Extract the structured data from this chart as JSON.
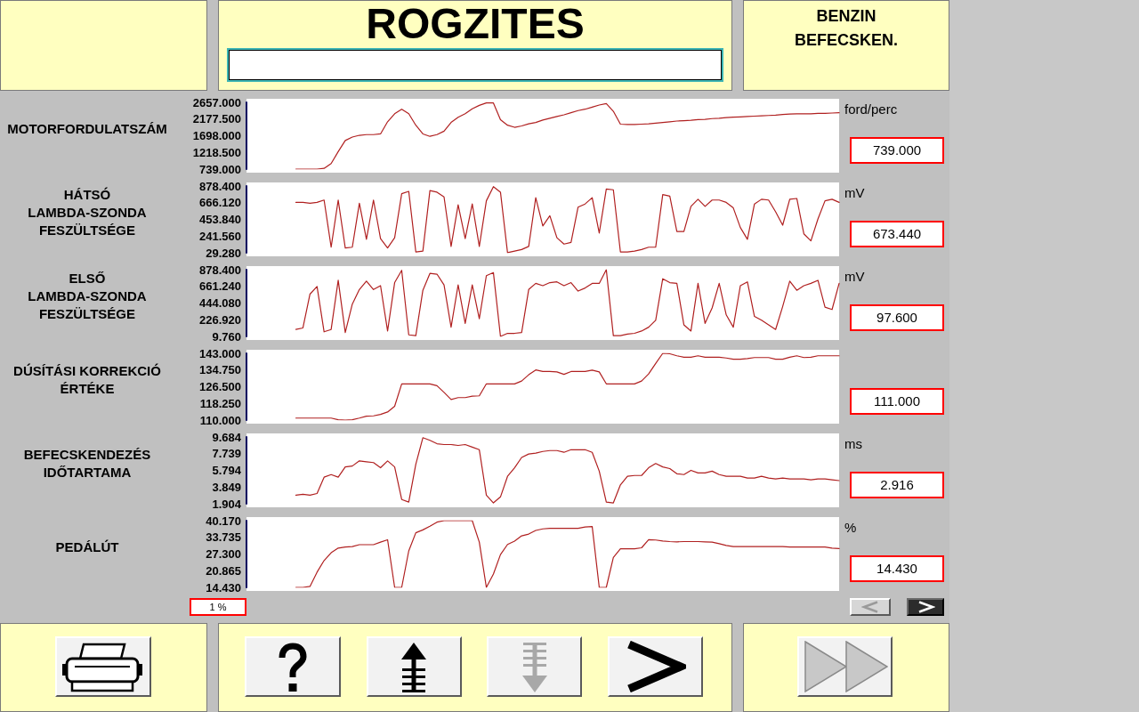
{
  "chart_data": [
    {
      "type": "other",
      "title": "ROGZITES",
      "annotations": [
        "BENZIN\nBEFECSKEN."
      ]
    },
    {
      "type": "line",
      "ylabel": "MOTORFORDULATSZÁM",
      "annotations": [
        "739.000",
        "ford/perc"
      ],
      "color": "#b02020",
      "tick_labels": "y",
      "ylim": [
        739,
        2657
      ],
      "yticks": [
        {
          "value": 739,
          "label": "739.000"
        },
        {
          "value": 1218.5,
          "label": "1218.500"
        },
        {
          "value": 1698,
          "label": "1698.000"
        },
        {
          "value": 2177.5,
          "label": "2177.500"
        },
        {
          "value": 2657,
          "label": "2657.000"
        }
      ],
      "categories": [
        null,
        null,
        null,
        null,
        null,
        null,
        null,
        null,
        null,
        null,
        null,
        null,
        null,
        null,
        null,
        null,
        null,
        null,
        null,
        null,
        null,
        null,
        null,
        null,
        null,
        null,
        null,
        null,
        null,
        null,
        null,
        null,
        null,
        null,
        null,
        null,
        null,
        null,
        null,
        null,
        null,
        null,
        null,
        null,
        null,
        null,
        null,
        null,
        null,
        null,
        null,
        null,
        null,
        null,
        null,
        null,
        null,
        null,
        null,
        null,
        null,
        null,
        null,
        null,
        null,
        null,
        null,
        null,
        null,
        null,
        null,
        null,
        null,
        null,
        null,
        null,
        null,
        null,
        null,
        null,
        null,
        null,
        null,
        null,
        null
      ],
      "values": [
        null,
        null,
        null,
        null,
        null,
        null,
        null,
        739,
        739,
        739,
        739,
        760,
        900,
        1240,
        1560,
        1660,
        1710,
        1730,
        1730,
        1750,
        2100,
        2330,
        2460,
        2330,
        2000,
        1750,
        1680,
        1730,
        1830,
        2080,
        2230,
        2330,
        2470,
        2570,
        2640,
        2640,
        2160,
        2000,
        1940,
        1980,
        2040,
        2080,
        2150,
        2200,
        2250,
        2300,
        2360,
        2420,
        2460,
        2520,
        2580,
        2620,
        2400,
        2030,
        2020,
        2020,
        2030,
        2040,
        2060,
        2080,
        2100,
        2120,
        2130,
        2140,
        2160,
        2170,
        2190,
        2200,
        2220,
        2230,
        2240,
        2250,
        2260,
        2270,
        2280,
        2290,
        2310,
        2320,
        2330,
        2330,
        2330,
        2340,
        2340,
        2350,
        2360
      ]
    },
    {
      "type": "line",
      "ylabel": "HÁTSÓ\nLAMBDA-SZONDA\nFESZÜLTSÉGE",
      "annotations": [
        "673.440",
        "mV"
      ],
      "color": "#b02020",
      "tick_labels": "y",
      "ylim": [
        29.28,
        878.4
      ],
      "yticks": [
        {
          "value": 29.28,
          "label": "29.280"
        },
        {
          "value": 241.56,
          "label": "241.560"
        },
        {
          "value": 453.84,
          "label": "453.840"
        },
        {
          "value": 666.12,
          "label": "666.120"
        },
        {
          "value": 878.4,
          "label": "878.400"
        }
      ],
      "categories": [
        null,
        null,
        null,
        null,
        null,
        null,
        null,
        null,
        null,
        null,
        null,
        null,
        null,
        null,
        null,
        null,
        null,
        null,
        null,
        null,
        null,
        null,
        null,
        null,
        null,
        null,
        null,
        null,
        null,
        null,
        null,
        null,
        null,
        null,
        null,
        null,
        null,
        null,
        null,
        null,
        null,
        null,
        null,
        null,
        null,
        null,
        null,
        null,
        null,
        null,
        null,
        null,
        null,
        null,
        null,
        null,
        null,
        null,
        null,
        null,
        null,
        null,
        null,
        null,
        null,
        null,
        null,
        null,
        null,
        null,
        null,
        null,
        null,
        null,
        null,
        null,
        null,
        null,
        null,
        null,
        null,
        null,
        null,
        null,
        null
      ],
      "values": [
        null,
        null,
        null,
        null,
        null,
        null,
        null,
        670,
        670,
        660,
        670,
        700,
        100,
        700,
        90,
        100,
        660,
        200,
        700,
        210,
        90,
        220,
        780,
        810,
        40,
        50,
        820,
        800,
        740,
        110,
        640,
        210,
        650,
        110,
        690,
        870,
        800,
        30,
        50,
        70,
        110,
        730,
        370,
        500,
        220,
        140,
        160,
        610,
        650,
        730,
        280,
        840,
        830,
        40,
        40,
        50,
        70,
        100,
        100,
        770,
        750,
        300,
        300,
        620,
        710,
        620,
        700,
        700,
        670,
        600,
        350,
        200,
        650,
        710,
        700,
        550,
        380,
        710,
        720,
        270,
        180,
        460,
        690,
        710,
        670
      ]
    },
    {
      "type": "line",
      "ylabel": "ELSŐ\nLAMBDA-SZONDA\nFESZÜLTSÉGE",
      "annotations": [
        "97.600",
        "mV"
      ],
      "color": "#b02020",
      "tick_labels": "y",
      "ylim": [
        9.76,
        878.4
      ],
      "yticks": [
        {
          "value": 9.76,
          "label": "9.760"
        },
        {
          "value": 226.92,
          "label": "226.920"
        },
        {
          "value": 444.08,
          "label": "444.080"
        },
        {
          "value": 661.24,
          "label": "661.240"
        },
        {
          "value": 878.4,
          "label": "878.400"
        }
      ],
      "categories": [
        null,
        null,
        null,
        null,
        null,
        null,
        null,
        null,
        null,
        null,
        null,
        null,
        null,
        null,
        null,
        null,
        null,
        null,
        null,
        null,
        null,
        null,
        null,
        null,
        null,
        null,
        null,
        null,
        null,
        null,
        null,
        null,
        null,
        null,
        null,
        null,
        null,
        null,
        null,
        null,
        null,
        null,
        null,
        null,
        null,
        null,
        null,
        null,
        null,
        null,
        null,
        null,
        null,
        null,
        null,
        null,
        null,
        null,
        null,
        null,
        null,
        null,
        null,
        null,
        null,
        null,
        null,
        null,
        null,
        null,
        null,
        null,
        null,
        null,
        null,
        null,
        null,
        null,
        null,
        null,
        null,
        null,
        null,
        null,
        null
      ],
      "values": [
        null,
        null,
        null,
        null,
        null,
        null,
        null,
        100,
        120,
        560,
        660,
        70,
        100,
        740,
        60,
        430,
        620,
        730,
        620,
        670,
        80,
        710,
        870,
        30,
        20,
        610,
        830,
        820,
        680,
        130,
        680,
        180,
        680,
        240,
        800,
        840,
        10,
        50,
        50,
        60,
        620,
        700,
        670,
        710,
        720,
        670,
        710,
        600,
        640,
        700,
        700,
        878.4,
        20,
        20,
        40,
        50,
        80,
        130,
        220,
        760,
        710,
        700,
        160,
        80,
        700,
        180,
        380,
        700,
        290,
        130,
        670,
        720,
        270,
        220,
        160,
        100,
        400,
        730,
        610,
        670,
        700,
        740,
        390,
        360,
        700
      ]
    },
    {
      "type": "line",
      "ylabel": "DÚSÍTÁSI KORREKCIÓ\nÉRTÉKE",
      "annotations": [
        "111.000"
      ],
      "color": "#b02020",
      "tick_labels": "y",
      "ylim": [
        110,
        143
      ],
      "yticks": [
        {
          "value": 110,
          "label": "110.000"
        },
        {
          "value": 118.25,
          "label": "118.250"
        },
        {
          "value": 126.5,
          "label": "126.500"
        },
        {
          "value": 134.75,
          "label": "134.750"
        },
        {
          "value": 143,
          "label": "143.000"
        }
      ],
      "categories": [
        null,
        null,
        null,
        null,
        null,
        null,
        null,
        null,
        null,
        null,
        null,
        null,
        null,
        null,
        null,
        null,
        null,
        null,
        null,
        null,
        null,
        null,
        null,
        null,
        null,
        null,
        null,
        null,
        null,
        null,
        null,
        null,
        null,
        null,
        null,
        null,
        null,
        null,
        null,
        null,
        null,
        null,
        null,
        null,
        null,
        null,
        null,
        null,
        null,
        null,
        null,
        null,
        null,
        null,
        null,
        null,
        null,
        null,
        null,
        null,
        null,
        null,
        null,
        null,
        null,
        null,
        null,
        null,
        null,
        null,
        null,
        null,
        null,
        null,
        null,
        null,
        null,
        null,
        null,
        null,
        null,
        null,
        null,
        null,
        null
      ],
      "values": [
        null,
        null,
        null,
        null,
        null,
        null,
        null,
        111,
        111,
        111,
        111,
        111,
        111,
        110.2,
        110,
        110.2,
        111,
        111.9,
        112.1,
        112.8,
        114,
        116.8,
        127.9,
        127.9,
        127.9,
        127.9,
        127.9,
        127,
        123.7,
        120.2,
        121.1,
        121.1,
        121.8,
        122,
        127.9,
        127.9,
        127.9,
        127.9,
        127.9,
        129.3,
        132.4,
        134.8,
        134,
        134,
        133.8,
        132.6,
        134,
        134,
        134,
        134.7,
        133.8,
        127.9,
        127.9,
        127.9,
        127.9,
        127.9,
        129.3,
        132.8,
        138,
        143,
        142.8,
        141.8,
        141.1,
        141.1,
        141.8,
        141.1,
        141.1,
        141.1,
        140.7,
        140.1,
        140.1,
        140.4,
        140.9,
        140.9,
        140.9,
        140.1,
        140.1,
        141.1,
        141.8,
        140.9,
        141.1,
        141.8,
        141.8,
        141.8,
        141.8
      ]
    },
    {
      "type": "line",
      "ylabel": "BEFECSKENDEZÉS\nIDŐTARTAMA",
      "annotations": [
        "2.916",
        "ms"
      ],
      "color": "#b02020",
      "tick_labels": "y",
      "ylim": [
        1.904,
        9.684
      ],
      "yticks": [
        1.904,
        3.849,
        5.794,
        7.739,
        9.684
      ],
      "categories": [
        null,
        null,
        null,
        null,
        null,
        null,
        null,
        null,
        null,
        null,
        null,
        null,
        null,
        null,
        null,
        null,
        null,
        null,
        null,
        null,
        null,
        null,
        null,
        null,
        null,
        null,
        null,
        null,
        null,
        null,
        null,
        null,
        null,
        null,
        null,
        null,
        null,
        null,
        null,
        null,
        null,
        null,
        null,
        null,
        null,
        null,
        null,
        null,
        null,
        null,
        null,
        null,
        null,
        null,
        null,
        null,
        null,
        null,
        null,
        null,
        null,
        null,
        null,
        null,
        null,
        null,
        null,
        null,
        null,
        null,
        null,
        null,
        null,
        null,
        null,
        null,
        null,
        null,
        null,
        null,
        null,
        null,
        null,
        null,
        null
      ],
      "values": [
        null,
        null,
        null,
        null,
        null,
        null,
        null,
        2.9,
        3,
        2.9,
        3.1,
        5,
        5.3,
        5,
        6.2,
        6.3,
        6.9,
        6.8,
        6.7,
        6.1,
        6.9,
        6.2,
        2.4,
        2.1,
        6.5,
        9.6,
        9.3,
        8.9,
        8.8,
        8.8,
        8.7,
        8.8,
        8.5,
        8.2,
        2.9,
        2,
        2.7,
        5.1,
        6.1,
        7.3,
        7.7,
        7.8,
        8,
        8.1,
        8.1,
        7.9,
        8.2,
        8.2,
        8.2,
        7.9,
        5.7,
        2.1,
        2,
        4.1,
        5.1,
        5.2,
        5.2,
        6.1,
        6.6,
        6.2,
        6,
        5.4,
        5.3,
        5.8,
        5.5,
        5.5,
        5.7,
        5.3,
        5.1,
        5.1,
        5.1,
        4.9,
        4.9,
        5.1,
        4.9,
        4.8,
        4.9,
        4.8,
        4.8,
        4.8,
        4.7,
        4.8,
        4.8,
        4.7,
        4.6
      ]
    },
    {
      "type": "line",
      "ylabel": "PEDÁLÚT",
      "annotations": [
        "14.430",
        "%",
        "1 %"
      ],
      "color": "#b02020",
      "tick_labels": "y",
      "ylim": [
        14.43,
        40.17
      ],
      "yticks": [
        {
          "value": 14.43,
          "label": "14.430"
        },
        20.865,
        {
          "value": 27.3,
          "label": "27.300"
        },
        33.735,
        {
          "value": 40.17,
          "label": "40.170"
        }
      ],
      "categories": [
        null,
        null,
        null,
        null,
        null,
        null,
        null,
        null,
        null,
        null,
        null,
        null,
        null,
        null,
        null,
        null,
        null,
        null,
        null,
        null,
        null,
        null,
        null,
        null,
        null,
        null,
        null,
        null,
        null,
        null,
        null,
        null,
        null,
        null,
        null,
        null,
        null,
        null,
        null,
        null,
        null,
        null,
        null,
        null,
        null,
        null,
        null,
        null,
        null,
        null,
        null,
        null,
        null,
        null,
        null,
        null,
        null,
        null,
        null,
        null,
        null,
        null,
        null,
        null,
        null,
        null,
        null,
        null,
        null,
        null,
        null,
        null,
        null,
        null,
        null,
        null,
        null,
        null,
        null,
        null,
        null,
        null,
        null,
        null,
        null
      ],
      "values": [
        null,
        null,
        null,
        null,
        null,
        null,
        null,
        14.43,
        14.43,
        14.8,
        20.3,
        24.8,
        27.8,
        29.6,
        30,
        30.2,
        30.9,
        30.9,
        30.9,
        31.9,
        32.8,
        14.43,
        14.43,
        28.5,
        35.5,
        36.6,
        38,
        39.6,
        40.17,
        40.17,
        40.17,
        40.17,
        40.17,
        31.9,
        14.43,
        19.6,
        27.1,
        31,
        32.3,
        34.3,
        35,
        36.4,
        37,
        37.2,
        37.2,
        37.2,
        37.2,
        37.2,
        37.7,
        37.9,
        14.43,
        14.43,
        26,
        29.3,
        29.3,
        29.3,
        29.7,
        32.8,
        32.7,
        32.3,
        32.1,
        32,
        32.1,
        32.1,
        32.1,
        32,
        31.9,
        31.3,
        30.6,
        30.2,
        30.2,
        30.2,
        30.2,
        30.2,
        30.2,
        30.2,
        30.2,
        30,
        30,
        30,
        30,
        30,
        30,
        29.6,
        29.4
      ]
    }
  ]
}
